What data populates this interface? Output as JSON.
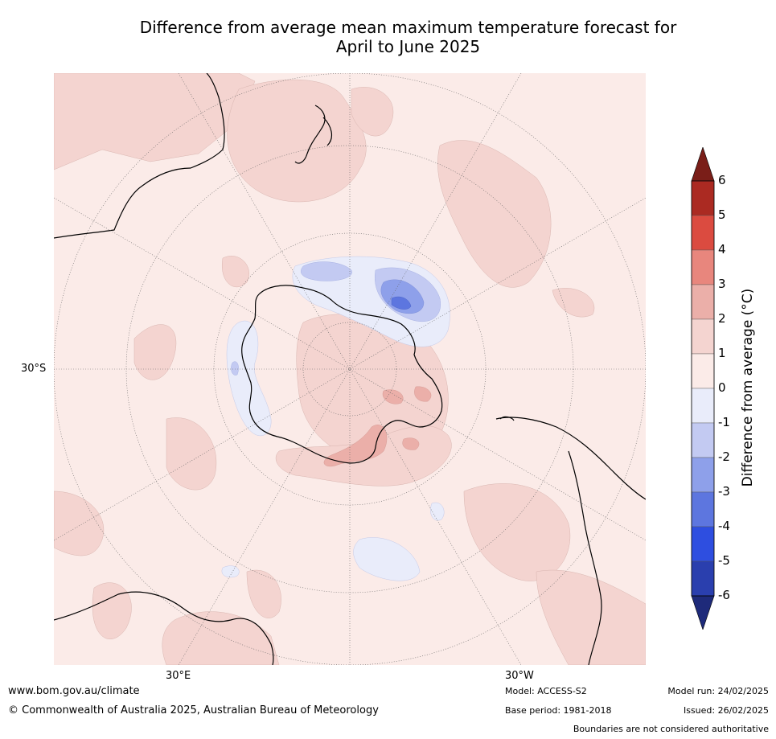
{
  "title_line1": "Difference from average mean maximum temperature forecast for",
  "title_line2": "April to June 2025",
  "map": {
    "lat_label": "30°S",
    "lon_labels": [
      "30°E",
      "30°W"
    ],
    "colors": {
      "ocean_bg": "#fbebe8",
      "pos_1_2": "#f4d4d0",
      "pos_2_3": "#ebafa9",
      "neg_0_1": "#e9ecfa",
      "neg_1_2": "#c3caf2",
      "neg_2_3": "#8ea0ea",
      "neg_3_4": "#5d76df",
      "coast": "#000000",
      "grid": "#666666"
    }
  },
  "colorbar": {
    "title": "Difference from average (°C)",
    "tick_labels": [
      "6",
      "5",
      "4",
      "3",
      "2",
      "1",
      "0",
      "-1",
      "-2",
      "-3",
      "-4",
      "-5",
      "-6"
    ],
    "levels": [
      {
        "from": 6,
        "to": "max",
        "color": "#7a1e18"
      },
      {
        "from": 5,
        "to": 6,
        "color": "#ab2a22"
      },
      {
        "from": 4,
        "to": 5,
        "color": "#db4b40"
      },
      {
        "from": 3,
        "to": 4,
        "color": "#e8867d"
      },
      {
        "from": 2,
        "to": 3,
        "color": "#ebafa9"
      },
      {
        "from": 1,
        "to": 2,
        "color": "#f4d4d0"
      },
      {
        "from": 0,
        "to": 1,
        "color": "#fbebe8"
      },
      {
        "from": -1,
        "to": 0,
        "color": "#e9ecfa"
      },
      {
        "from": -2,
        "to": -1,
        "color": "#c3caf2"
      },
      {
        "from": -3,
        "to": -2,
        "color": "#8ea0ea"
      },
      {
        "from": -4,
        "to": -3,
        "color": "#5d76df"
      },
      {
        "from": -5,
        "to": -4,
        "color": "#2e4ee0"
      },
      {
        "from": -6,
        "to": -5,
        "color": "#2a3fae"
      },
      {
        "from": "min",
        "to": -6,
        "color": "#1e2a7a"
      }
    ]
  },
  "footer": {
    "website": "www.bom.gov.au/climate",
    "copyright": "© Commonwealth of Australia 2025, Australian Bureau of Meteorology",
    "model": "Model: ACCESS-S2",
    "base_period": "Base period: 1981-2018",
    "model_run": "Model run: 24/02/2025",
    "issued": "Issued: 26/02/2025",
    "disclaimer": "Boundaries are not considered authoritative"
  }
}
